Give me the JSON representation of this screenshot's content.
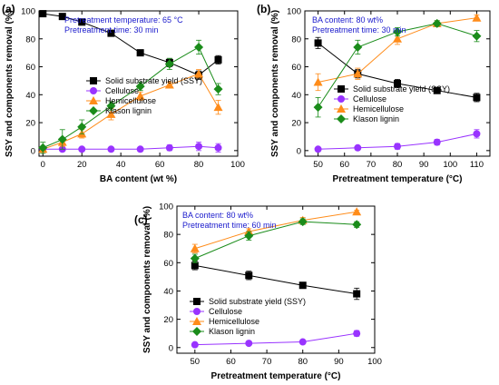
{
  "figure": {
    "y_axis_title": "SSY and components removal (%)"
  },
  "chart_data": [
    {
      "panel": "(a)",
      "type": "line",
      "xlabel": "BA content (wt %)",
      "ylabel": "SSY and components removal (%)",
      "xlim": [
        -2,
        100
      ],
      "ylim": [
        -4,
        100
      ],
      "xticks": [
        0,
        20,
        40,
        60,
        80,
        100
      ],
      "yticks": [
        0,
        20,
        40,
        60,
        80,
        100
      ],
      "annotation": [
        "Pretreatment temperature: 65 °C",
        "Pretreatment time: 30 min"
      ],
      "legend_position": "center-right",
      "series": [
        {
          "name": "Solid substrate yield (SSY)",
          "color": "#000000",
          "marker": "square",
          "x": [
            0,
            10,
            20,
            35,
            50,
            65,
            80,
            90
          ],
          "y": [
            98,
            96,
            92,
            84,
            70,
            63,
            54,
            65
          ],
          "err": [
            2,
            2,
            2,
            2,
            2,
            3,
            3,
            3
          ]
        },
        {
          "name": "Cellulose",
          "color": "#9933ff",
          "marker": "circle",
          "x": [
            0,
            10,
            20,
            35,
            50,
            65,
            80,
            90
          ],
          "y": [
            1,
            1,
            1,
            1,
            1,
            2,
            3,
            2
          ],
          "err": [
            1,
            1,
            1,
            1,
            1,
            2,
            3,
            3
          ]
        },
        {
          "name": "Hemicellulose",
          "color": "#ff8c1a",
          "marker": "triangle",
          "x": [
            0,
            10,
            20,
            35,
            50,
            65,
            80,
            90
          ],
          "y": [
            1,
            6,
            12,
            26,
            39,
            47,
            55,
            31
          ],
          "err": [
            2,
            3,
            3,
            4,
            3,
            2,
            3,
            5
          ]
        },
        {
          "name": "Klason lignin",
          "color": "#1a8c1a",
          "marker": "diamond",
          "x": [
            0,
            10,
            20,
            35,
            50,
            65,
            80,
            90
          ],
          "y": [
            2,
            8,
            17,
            32,
            46,
            62,
            74,
            44
          ],
          "err": [
            4,
            7,
            5,
            3,
            3,
            4,
            5,
            4
          ]
        }
      ]
    },
    {
      "panel": "(b)",
      "type": "line",
      "xlabel": "Pretreatment temperature (°C)",
      "ylabel": "SSY and components removal (%)",
      "xlim": [
        45,
        115
      ],
      "ylim": [
        -4,
        100
      ],
      "xticks": [
        50,
        60,
        70,
        80,
        90,
        100,
        110
      ],
      "yticks": [
        0,
        20,
        40,
        60,
        80,
        100
      ],
      "annotation": [
        "BA content: 80 wt%",
        "Pretreatment time: 30 min"
      ],
      "legend_position": "center-right",
      "series": [
        {
          "name": "Solid substrate yield (SSY)",
          "color": "#000000",
          "marker": "square",
          "x": [
            50,
            65,
            80,
            95,
            110
          ],
          "y": [
            77,
            55,
            48,
            43,
            38
          ],
          "err": [
            4,
            3,
            3,
            2,
            3
          ]
        },
        {
          "name": "Cellulose",
          "color": "#9933ff",
          "marker": "circle",
          "x": [
            50,
            65,
            80,
            95,
            110
          ],
          "y": [
            1,
            2,
            3,
            6,
            12
          ],
          "err": [
            1,
            1,
            2,
            2,
            3
          ]
        },
        {
          "name": "Hemicellulose",
          "color": "#ff8c1a",
          "marker": "triangle",
          "x": [
            50,
            65,
            80,
            95,
            110
          ],
          "y": [
            49,
            55,
            80,
            91,
            95
          ],
          "err": [
            6,
            4,
            4,
            2,
            2
          ]
        },
        {
          "name": "Klason lignin",
          "color": "#1a8c1a",
          "marker": "diamond",
          "x": [
            50,
            65,
            80,
            95,
            110
          ],
          "y": [
            31,
            74,
            85,
            91,
            82
          ],
          "err": [
            7,
            5,
            3,
            2,
            4
          ]
        }
      ]
    },
    {
      "panel": "(c)",
      "type": "line",
      "xlabel": "Pretreatment temperature (°C)",
      "ylabel": "SSY and components removal (%)",
      "xlim": [
        45,
        100
      ],
      "ylim": [
        -4,
        100
      ],
      "xticks": [
        50,
        60,
        70,
        80,
        90,
        100
      ],
      "yticks": [
        0,
        20,
        40,
        60,
        80,
        100
      ],
      "annotation": [
        "BA content: 80 wt%",
        "Pretreatment time: 60 min"
      ],
      "legend_position": "center-right",
      "series": [
        {
          "name": "Solid substrate yield (SSY)",
          "color": "#000000",
          "marker": "square",
          "x": [
            50,
            65,
            80,
            95
          ],
          "y": [
            58,
            51,
            44,
            38
          ],
          "err": [
            3,
            3,
            2,
            4
          ]
        },
        {
          "name": "Cellulose",
          "color": "#9933ff",
          "marker": "circle",
          "x": [
            50,
            65,
            80,
            95
          ],
          "y": [
            2,
            3,
            4,
            10
          ],
          "err": [
            1,
            1,
            1,
            2
          ]
        },
        {
          "name": "Hemicellulose",
          "color": "#ff8c1a",
          "marker": "triangle",
          "x": [
            50,
            65,
            80,
            95
          ],
          "y": [
            70,
            82,
            90,
            96
          ],
          "err": [
            3,
            2,
            2,
            1
          ]
        },
        {
          "name": "Klason lignin",
          "color": "#1a8c1a",
          "marker": "diamond",
          "x": [
            50,
            65,
            80,
            95
          ],
          "y": [
            63,
            79,
            89,
            87
          ],
          "err": [
            3,
            3,
            2,
            2
          ]
        }
      ]
    }
  ]
}
